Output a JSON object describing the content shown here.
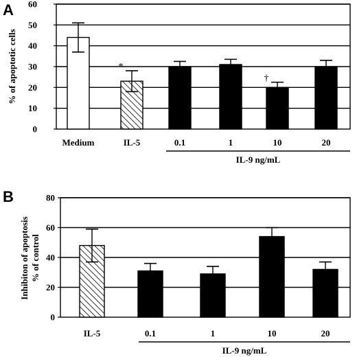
{
  "chart_data": [
    {
      "panel": "A",
      "type": "bar",
      "ylabel": "% of apoptotic cells",
      "ylim": [
        0,
        60
      ],
      "yticks": [
        "0",
        "10",
        "20",
        "30",
        "40",
        "50",
        "60"
      ],
      "grid": true,
      "categories": [
        "Medium",
        "IL-5",
        "0.1",
        "1",
        "10",
        "20"
      ],
      "values": [
        44,
        23,
        30,
        31,
        20,
        30
      ],
      "errors": [
        7,
        5,
        2.5,
        2.5,
        2.5,
        3
      ],
      "fills": [
        "white",
        "hatched",
        "black",
        "black",
        "black",
        "black"
      ],
      "annotations": [
        {
          "category": "IL-5",
          "text": "*"
        },
        {
          "category": "10",
          "text": "†"
        }
      ],
      "group_label": "IL-9 ng/mL",
      "group_categories": [
        "0.1",
        "1",
        "10",
        "20"
      ]
    },
    {
      "panel": "B",
      "type": "bar",
      "ylabel": "Inhibiton of apoptosis % of control",
      "ylabel_lines": [
        "Inhibiton of  apoptosis",
        "% of control"
      ],
      "ylim": [
        0,
        80
      ],
      "yticks": [
        "0",
        "20",
        "40",
        "60",
        "80"
      ],
      "grid": true,
      "categories": [
        "IL-5",
        "0.1",
        "1",
        "10",
        "20"
      ],
      "values": [
        48,
        31,
        29,
        54,
        32
      ],
      "errors": [
        11,
        5,
        5,
        6,
        5
      ],
      "fills": [
        "hatched",
        "black",
        "black",
        "black",
        "black"
      ],
      "group_label": "IL-9 ng/mL",
      "group_categories": [
        "0.1",
        "1",
        "10",
        "20"
      ]
    }
  ]
}
